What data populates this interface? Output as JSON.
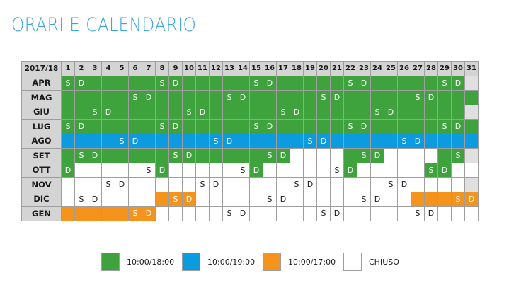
{
  "title": "ORARI E CALENDARIO",
  "calendar": {
    "corner_label": "2017/18",
    "days": [
      "1",
      "2",
      "3",
      "4",
      "5",
      "6",
      "7",
      "8",
      "9",
      "10",
      "11",
      "12",
      "13",
      "14",
      "15",
      "16",
      "17",
      "18",
      "19",
      "20",
      "21",
      "22",
      "23",
      "24",
      "25",
      "26",
      "27",
      "28",
      "29",
      "30",
      "31"
    ],
    "months": [
      {
        "name": "APR",
        "cells": [
          "gS",
          "gD",
          "g",
          "g",
          "g",
          "g",
          "g",
          "gS",
          "gD",
          "g",
          "g",
          "g",
          "g",
          "g",
          "gS",
          "gD",
          "g",
          "g",
          "g",
          "g",
          "g",
          "gS",
          "gD",
          "g",
          "g",
          "g",
          "g",
          "g",
          "gS",
          "gD",
          "x"
        ]
      },
      {
        "name": "MAG",
        "cells": [
          "g",
          "g",
          "g",
          "g",
          "g",
          "gS",
          "gD",
          "g",
          "g",
          "g",
          "g",
          "g",
          "gS",
          "gD",
          "g",
          "g",
          "g",
          "g",
          "g",
          "gS",
          "gD",
          "g",
          "g",
          "g",
          "g",
          "g",
          "gS",
          "gD",
          "g",
          "g",
          "g"
        ]
      },
      {
        "name": "GIU",
        "cells": [
          "g",
          "g",
          "gS",
          "gD",
          "g",
          "g",
          "g",
          "g",
          "g",
          "gS",
          "gD",
          "g",
          "g",
          "g",
          "g",
          "g",
          "gS",
          "gD",
          "g",
          "g",
          "g",
          "g",
          "g",
          "gS",
          "gD",
          "g",
          "g",
          "g",
          "g",
          "g",
          "x"
        ]
      },
      {
        "name": "LUG",
        "cells": [
          "gS",
          "gD",
          "g",
          "g",
          "g",
          "g",
          "g",
          "gS",
          "gD",
          "g",
          "g",
          "g",
          "g",
          "g",
          "gS",
          "gD",
          "g",
          "g",
          "g",
          "g",
          "g",
          "gS",
          "gD",
          "g",
          "g",
          "g",
          "g",
          "g",
          "gS",
          "gD",
          "g"
        ]
      },
      {
        "name": "AGO",
        "cells": [
          "b",
          "b",
          "b",
          "b",
          "bS",
          "bD",
          "b",
          "b",
          "b",
          "b",
          "b",
          "bS",
          "bD",
          "b",
          "b",
          "b",
          "b",
          "b",
          "bS",
          "bD",
          "b",
          "b",
          "b",
          "b",
          "b",
          "bS",
          "bD",
          "b",
          "b",
          "b",
          "b"
        ]
      },
      {
        "name": "SET",
        "cells": [
          "g",
          "gS",
          "gD",
          "g",
          "g",
          "g",
          "g",
          "g",
          "gS",
          "gD",
          "g",
          "g",
          "g",
          "g",
          "g",
          "gS",
          "gD",
          "w",
          "w",
          "w",
          "w",
          "g",
          "gS",
          "gD",
          "w",
          "w",
          "w",
          "w",
          "g",
          "gS",
          "x"
        ]
      },
      {
        "name": "OTT",
        "cells": [
          "gD",
          "w",
          "w",
          "w",
          "w",
          "w",
          "wS",
          "gD",
          "w",
          "w",
          "w",
          "w",
          "w",
          "wS",
          "gD",
          "w",
          "w",
          "w",
          "w",
          "w",
          "wS",
          "gD",
          "w",
          "w",
          "w",
          "w",
          "w",
          "gS",
          "gD",
          "w",
          "w"
        ]
      },
      {
        "name": "NOV",
        "cells": [
          "w",
          "w",
          "w",
          "wS",
          "wD",
          "w",
          "w",
          "w",
          "w",
          "w",
          "wS",
          "wD",
          "w",
          "w",
          "w",
          "w",
          "w",
          "wS",
          "wD",
          "w",
          "w",
          "w",
          "w",
          "w",
          "wS",
          "wD",
          "w",
          "w",
          "w",
          "w",
          "x"
        ]
      },
      {
        "name": "DIC",
        "cells": [
          "w",
          "wS",
          "wD",
          "w",
          "w",
          "w",
          "w",
          "o",
          "oS",
          "oD",
          "w",
          "w",
          "w",
          "w",
          "w",
          "wS",
          "wD",
          "w",
          "w",
          "w",
          "w",
          "w",
          "wS",
          "wD",
          "w",
          "w",
          "o",
          "o",
          "o",
          "oS",
          "oD"
        ]
      },
      {
        "name": "GEN",
        "cells": [
          "o",
          "o",
          "o",
          "o",
          "o",
          "oS",
          "oD",
          "w",
          "w",
          "w",
          "w",
          "w",
          "wS",
          "wD",
          "w",
          "w",
          "w",
          "w",
          "w",
          "wS",
          "wD",
          "w",
          "w",
          "w",
          "w",
          "w",
          "wS",
          "wD",
          "w",
          "w",
          "w"
        ]
      }
    ]
  },
  "legend": [
    {
      "label": "10:00/18:00",
      "color": "#3ea33d"
    },
    {
      "label": "10:00/19:00",
      "color": "#0d9be0"
    },
    {
      "label": "10:00/17:00",
      "color": "#f4941c"
    },
    {
      "label": "CHIUSO",
      "color": "#ffffff"
    }
  ]
}
